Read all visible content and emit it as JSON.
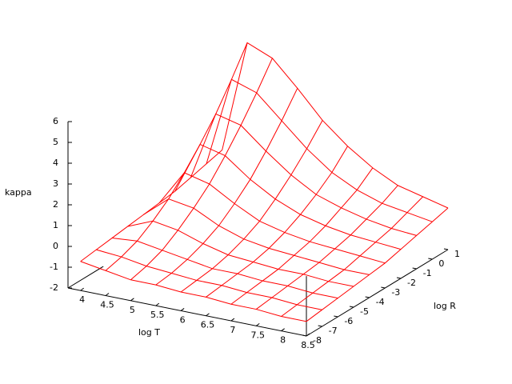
{
  "chart_data": {
    "type": "surface",
    "xlabel": "log T",
    "ylabel": "log R",
    "zlabel": "kappa",
    "color": "#ff0000",
    "x": [
      4,
      4.5,
      5,
      5.5,
      6,
      6.5,
      7,
      7.5,
      8,
      8.5
    ],
    "y": [
      -8,
      -7,
      -6,
      -5,
      -4,
      -3,
      -2,
      -1,
      0,
      1
    ],
    "z": [
      [
        -0.6,
        -0.8,
        -1.0,
        -1.0,
        -1.1,
        -1.1,
        -1.2,
        -1.2,
        -1.3,
        -1.3
      ],
      [
        -0.5,
        -0.6,
        -0.8,
        -0.9,
        -1.0,
        -1.0,
        -1.1,
        -1.1,
        -1.2,
        -1.2
      ],
      [
        -0.4,
        -0.3,
        -0.5,
        -0.7,
        -0.9,
        -0.9,
        -1.0,
        -1.0,
        -1.1,
        -1.1
      ],
      [
        -0.3,
        0.2,
        0.0,
        -0.4,
        -0.7,
        -0.8,
        -0.9,
        -0.9,
        -1.0,
        -1.0
      ],
      [
        -0.2,
        0.8,
        0.6,
        0.0,
        -0.4,
        -0.6,
        -0.7,
        -0.8,
        -0.9,
        -0.9
      ],
      [
        -0.1,
        1.6,
        1.3,
        0.6,
        0.0,
        -0.3,
        -0.5,
        -0.6,
        -0.7,
        -0.8
      ],
      [
        0.0,
        2.5,
        2.2,
        1.3,
        0.6,
        0.1,
        -0.2,
        -0.4,
        -0.5,
        -0.6
      ],
      [
        0.2,
        3.5,
        3.2,
        2.2,
        1.3,
        0.6,
        0.2,
        -0.1,
        -0.3,
        -0.4
      ],
      [
        0.4,
        4.7,
        4.3,
        3.2,
        2.1,
        1.2,
        0.6,
        0.2,
        0.0,
        -0.2
      ],
      [
        0.6,
        6.0,
        5.5,
        4.3,
        3.0,
        2.0,
        1.2,
        0.6,
        0.3,
        0.0
      ]
    ],
    "xlim": [
      3.75,
      8.5
    ],
    "ylim": [
      -8,
      1
    ],
    "zlim": [
      -2,
      6
    ],
    "xticks": [
      4,
      4.5,
      5,
      5.5,
      6,
      6.5,
      7,
      7.5,
      8,
      8.5
    ],
    "yticks": [
      -8,
      -7,
      -6,
      -5,
      -4,
      -3,
      -2,
      -1,
      0,
      1
    ],
    "zticks": [
      -2,
      -1,
      0,
      1,
      2,
      3,
      4,
      5,
      6
    ]
  }
}
